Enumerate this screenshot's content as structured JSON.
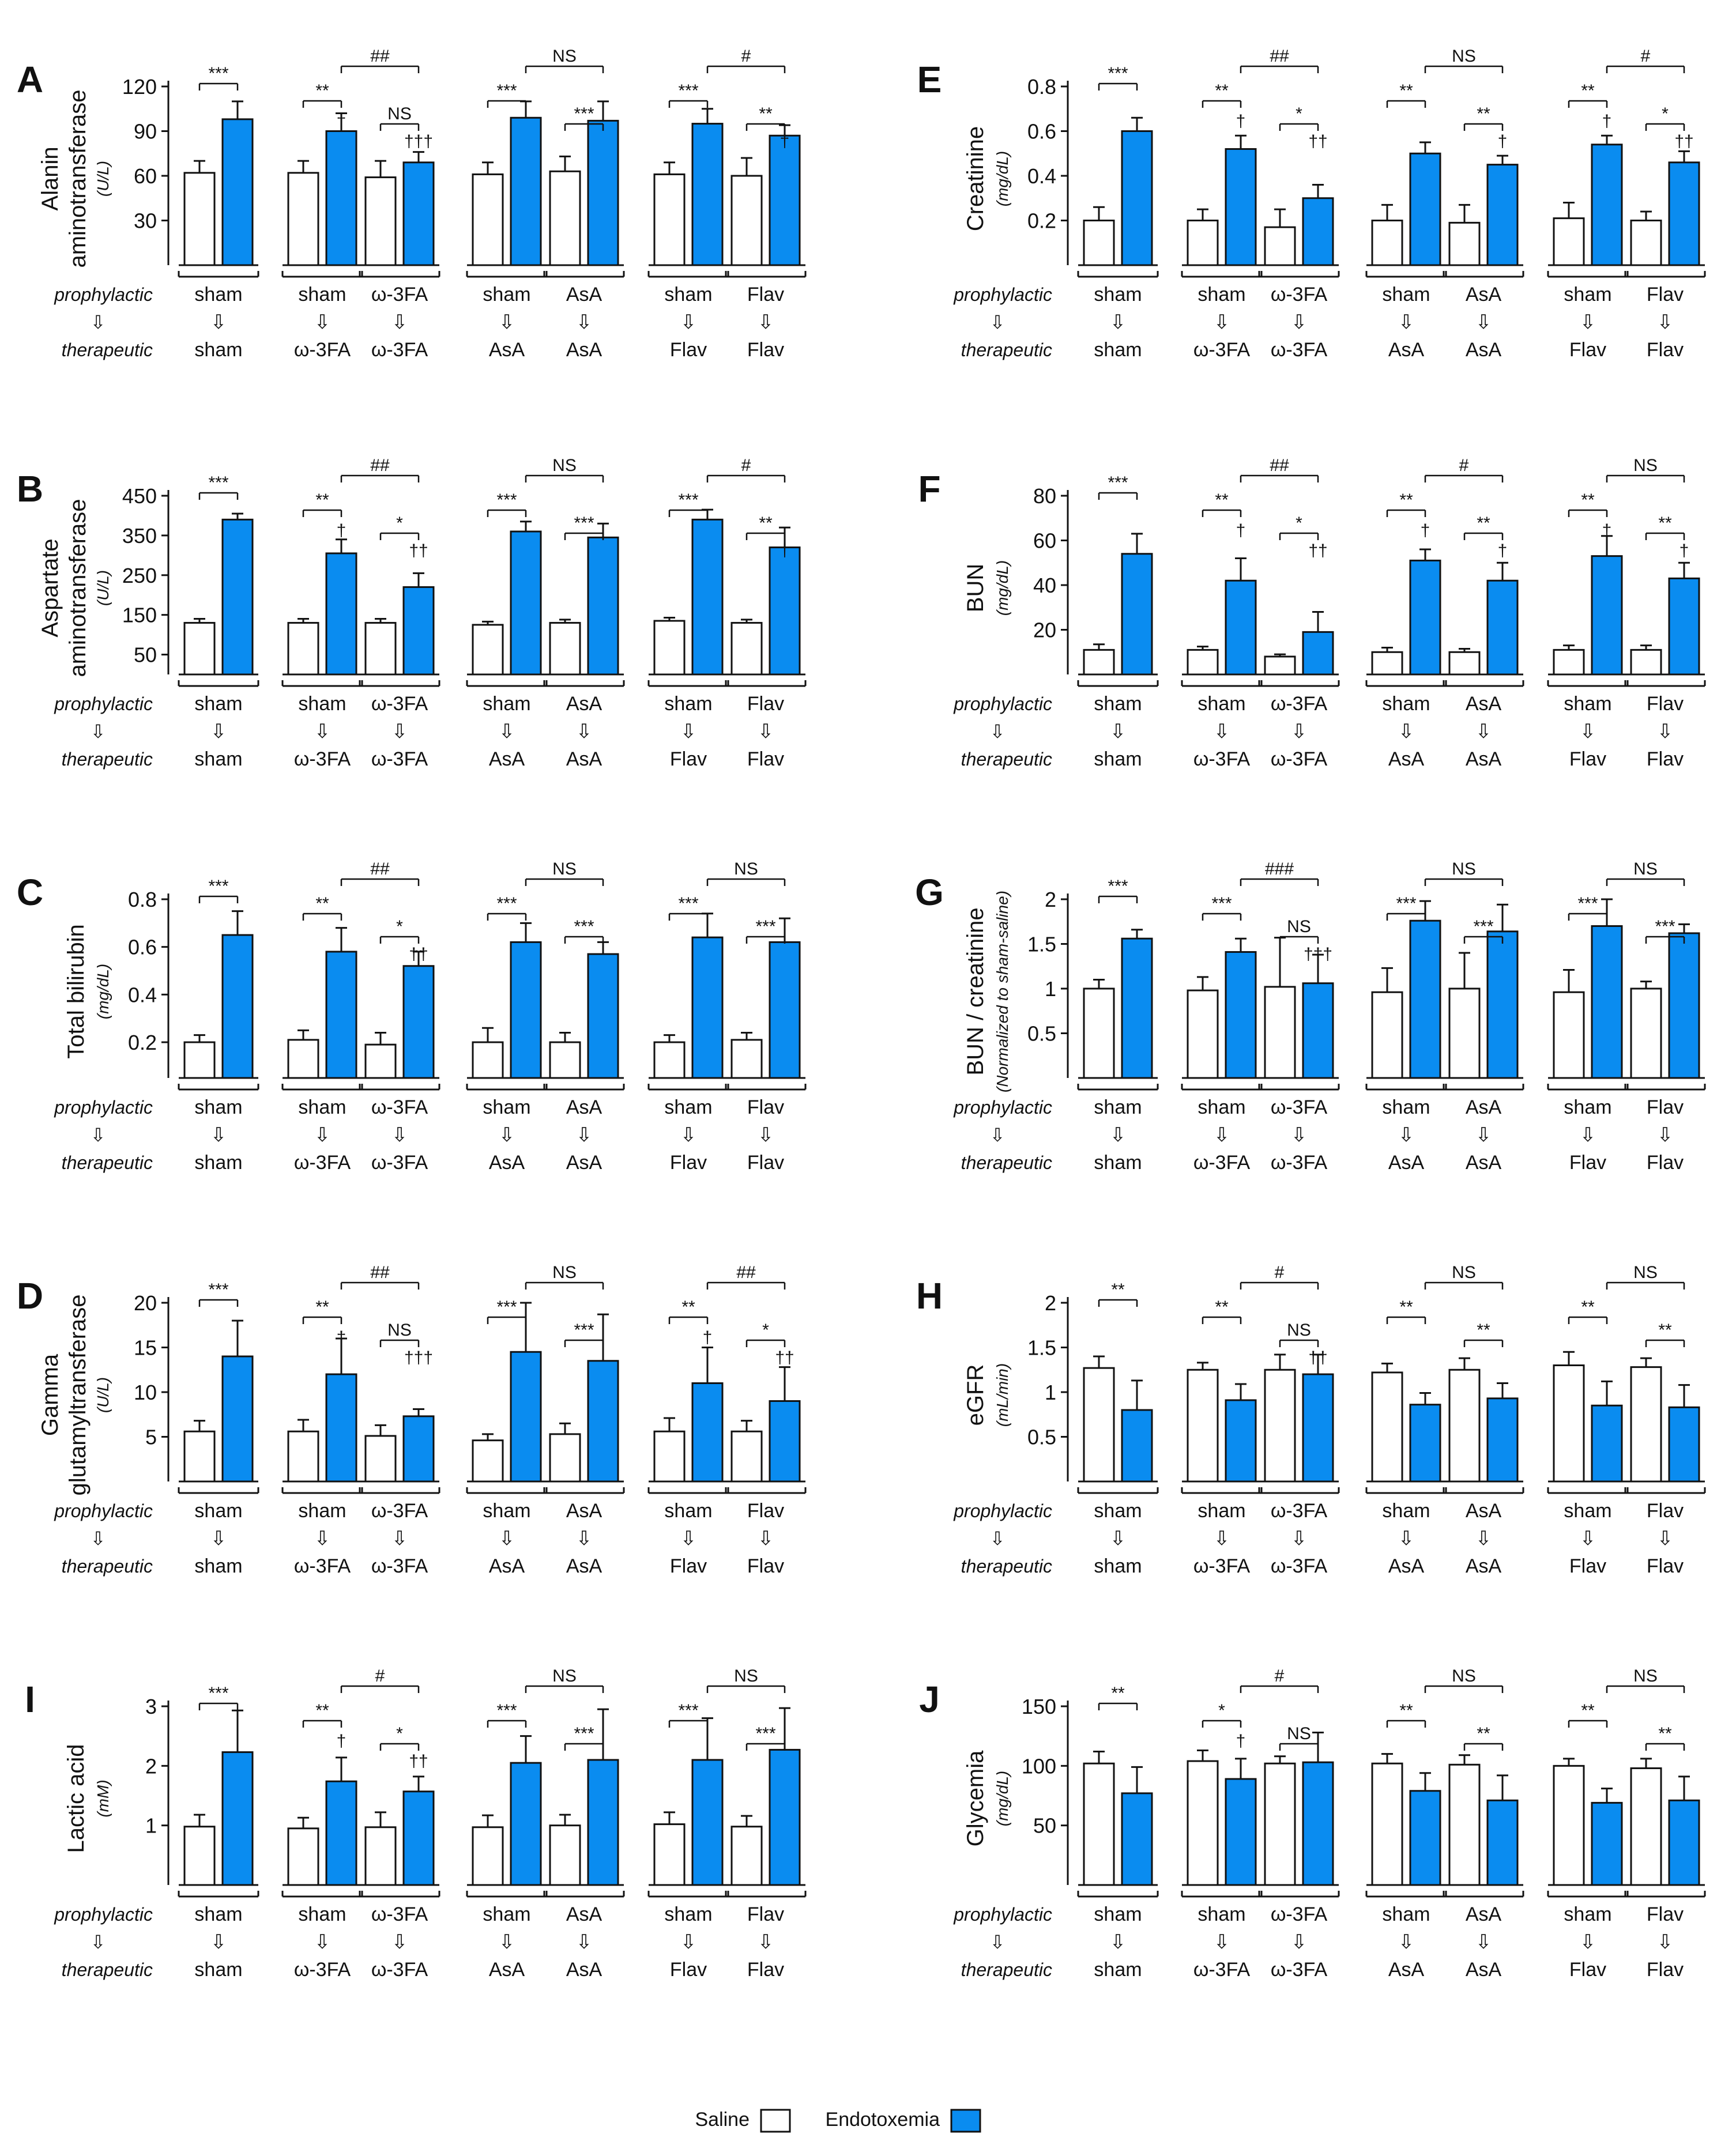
{
  "colors": {
    "saline": "#ffffff",
    "endotoxemia": "#0a8cf0",
    "ink": "#111111"
  },
  "labels": {
    "prophylactic": "prophylactic",
    "therapeutic": "therapeutic"
  },
  "groups": [
    {
      "pro": "sham",
      "ther": "sham"
    },
    {
      "pro": "sham",
      "ther": "ω-3FA"
    },
    {
      "pro": "ω-3FA",
      "ther": "ω-3FA"
    },
    {
      "pro": "sham",
      "ther": "AsA"
    },
    {
      "pro": "AsA",
      "ther": "AsA"
    },
    {
      "pro": "sham",
      "ther": "Flav"
    },
    {
      "pro": "Flav",
      "ther": "Flav"
    }
  ],
  "legend": {
    "saline": "Saline",
    "endotoxemia": "Endotoxemia"
  },
  "chart_data": [
    {
      "panel": "A",
      "type": "bar",
      "title": "",
      "ylabel": "Alanin aminotransferase",
      "unit": "(U/L)",
      "ylim": [
        0,
        120
      ],
      "ticks": [
        30,
        60,
        90,
        120
      ],
      "series": [
        {
          "name": "Saline",
          "values": [
            62,
            62,
            59,
            61,
            63,
            61,
            60
          ],
          "errors": [
            8,
            8,
            11,
            8,
            10,
            8,
            12
          ]
        },
        {
          "name": "Endotoxemia",
          "values": [
            98,
            90,
            69,
            99,
            97,
            95,
            87
          ],
          "errors": [
            12,
            12,
            7,
            11,
            13,
            10,
            7
          ]
        }
      ],
      "annotations": [
        "***",
        "**",
        "†",
        "NS",
        "†††",
        "##",
        "***",
        "***",
        "NS",
        "***",
        "**",
        "†",
        "#"
      ]
    },
    {
      "panel": "B",
      "type": "bar",
      "title": "",
      "ylabel": "Aspartate aminotransferase",
      "unit": "(U/L)",
      "ylim": [
        0,
        450
      ],
      "ticks": [
        50,
        150,
        250,
        350,
        450
      ],
      "series": [
        {
          "name": "Saline",
          "values": [
            130,
            130,
            130,
            125,
            130,
            135,
            130
          ],
          "errors": [
            10,
            10,
            10,
            8,
            8,
            8,
            8
          ]
        },
        {
          "name": "Endotoxemia",
          "values": [
            390,
            305,
            220,
            360,
            345,
            390,
            320
          ],
          "errors": [
            15,
            35,
            35,
            25,
            35,
            25,
            50
          ]
        }
      ],
      "annotations": [
        "***",
        "**",
        "†",
        "*",
        "††",
        "##",
        "***",
        "***",
        "NS",
        "***",
        "**",
        "†",
        "#"
      ]
    },
    {
      "panel": "C",
      "type": "bar",
      "title": "",
      "ylabel": "Total bilirubin",
      "unit": "(mg/dL)",
      "ylim": [
        0.05,
        0.8
      ],
      "ticks": [
        0.2,
        0.4,
        0.6,
        0.8
      ],
      "series": [
        {
          "name": "Saline",
          "values": [
            0.2,
            0.21,
            0.19,
            0.2,
            0.2,
            0.2,
            0.21
          ],
          "errors": [
            0.03,
            0.04,
            0.05,
            0.06,
            0.04,
            0.03,
            0.03
          ]
        },
        {
          "name": "Endotoxemia",
          "values": [
            0.65,
            0.58,
            0.52,
            0.62,
            0.57,
            0.64,
            0.62
          ],
          "errors": [
            0.1,
            0.1,
            0.06,
            0.08,
            0.05,
            0.1,
            0.1
          ]
        }
      ],
      "annotations": [
        "***",
        "**",
        "*",
        "††",
        "##",
        "***",
        "***",
        "NS",
        "***",
        "***",
        "NS"
      ]
    },
    {
      "panel": "D",
      "type": "bar",
      "title": "",
      "ylabel": "Gamma glutamyltransferase",
      "unit": "(U/L)",
      "ylim": [
        0,
        20
      ],
      "ticks": [
        5,
        10,
        15,
        20
      ],
      "series": [
        {
          "name": "Saline",
          "values": [
            5.6,
            5.6,
            5.1,
            4.6,
            5.3,
            5.6,
            5.6
          ],
          "errors": [
            1.2,
            1.3,
            1.2,
            0.7,
            1.2,
            1.5,
            1.2
          ]
        },
        {
          "name": "Endotoxemia",
          "values": [
            14,
            12,
            7.3,
            14.5,
            13.5,
            11,
            9
          ],
          "errors": [
            4,
            4,
            0.8,
            5.5,
            5.2,
            4,
            3.8
          ]
        }
      ],
      "annotations": [
        "***",
        "**",
        "†",
        "NS",
        "†††",
        "##",
        "***",
        "***",
        "NS",
        "**",
        "†",
        "*",
        "††",
        "##"
      ]
    },
    {
      "panel": "E",
      "type": "bar",
      "title": "",
      "ylabel": "Creatinine",
      "unit": "(mg/dL)",
      "ylim": [
        0,
        0.8
      ],
      "ticks": [
        0.2,
        0.4,
        0.6,
        0.8
      ],
      "series": [
        {
          "name": "Saline",
          "values": [
            0.2,
            0.2,
            0.17,
            0.2,
            0.19,
            0.21,
            0.2
          ],
          "errors": [
            0.06,
            0.05,
            0.08,
            0.07,
            0.08,
            0.07,
            0.04
          ]
        },
        {
          "name": "Endotoxemia",
          "values": [
            0.6,
            0.52,
            0.3,
            0.5,
            0.45,
            0.54,
            0.46
          ],
          "errors": [
            0.06,
            0.06,
            0.06,
            0.05,
            0.04,
            0.04,
            0.05
          ]
        }
      ],
      "annotations": [
        "***",
        "**",
        "†",
        "*",
        "††",
        "##",
        "**",
        "**",
        "†",
        "NS",
        "**",
        "†",
        "*",
        "††",
        "#"
      ]
    },
    {
      "panel": "F",
      "type": "bar",
      "title": "",
      "ylabel": "BUN",
      "unit": "(mg/dL)",
      "ylim": [
        0,
        80
      ],
      "ticks": [
        20,
        40,
        60,
        80
      ],
      "series": [
        {
          "name": "Saline",
          "values": [
            11,
            11,
            8,
            10,
            10,
            11,
            11
          ],
          "errors": [
            2.5,
            1.5,
            1,
            2,
            1.5,
            2,
            2
          ]
        },
        {
          "name": "Endotoxemia",
          "values": [
            54,
            42,
            19,
            51,
            42,
            53,
            43
          ],
          "errors": [
            9,
            10,
            9,
            5,
            8,
            9,
            7
          ]
        }
      ],
      "annotations": [
        "***",
        "**",
        "†",
        "*",
        "††",
        "##",
        "**",
        "†",
        "**",
        "†",
        "#",
        "**",
        "†",
        "**",
        "†",
        "NS"
      ]
    },
    {
      "panel": "G",
      "type": "bar",
      "title": "",
      "ylabel": "BUN / creatinine",
      "unit": "(Normalized to sham-saline)",
      "ylim": [
        0,
        2.0
      ],
      "ticks": [
        0.5,
        1.0,
        1.5,
        2.0
      ],
      "series": [
        {
          "name": "Saline",
          "values": [
            1.0,
            0.98,
            1.02,
            0.96,
            1.0,
            0.96,
            1.0
          ],
          "errors": [
            0.1,
            0.15,
            0.55,
            0.27,
            0.4,
            0.25,
            0.08
          ]
        },
        {
          "name": "Endotoxemia",
          "values": [
            1.56,
            1.41,
            1.06,
            1.76,
            1.64,
            1.7,
            1.62
          ],
          "errors": [
            0.1,
            0.15,
            0.32,
            0.22,
            0.3,
            0.3,
            0.1
          ]
        }
      ],
      "annotations": [
        "***",
        "***",
        "NS",
        "†††",
        "###",
        "***",
        "***",
        "NS",
        "***",
        "***",
        "NS"
      ]
    },
    {
      "panel": "H",
      "type": "bar",
      "title": "",
      "ylabel": "eGFR",
      "unit": "(mL/min)",
      "ylim": [
        0,
        2.0
      ],
      "ticks": [
        0.5,
        1.0,
        1.5,
        2.0
      ],
      "series": [
        {
          "name": "Saline",
          "values": [
            1.27,
            1.25,
            1.25,
            1.22,
            1.25,
            1.3,
            1.28
          ],
          "errors": [
            0.13,
            0.08,
            0.17,
            0.1,
            0.13,
            0.15,
            0.1
          ]
        },
        {
          "name": "Endotoxemia",
          "values": [
            0.8,
            0.91,
            1.2,
            0.86,
            0.93,
            0.85,
            0.83
          ],
          "errors": [
            0.33,
            0.18,
            0.22,
            0.13,
            0.17,
            0.27,
            0.25
          ]
        }
      ],
      "annotations": [
        "**",
        "**",
        "NS",
        "††",
        "#",
        "**",
        "**",
        "NS",
        "**",
        "**",
        "NS"
      ]
    },
    {
      "panel": "I",
      "type": "bar",
      "title": "",
      "ylabel": "Lactic acid",
      "unit": "(mM)",
      "ylim": [
        0,
        3
      ],
      "ticks": [
        1,
        2,
        3
      ],
      "series": [
        {
          "name": "Saline",
          "values": [
            0.98,
            0.95,
            0.97,
            0.97,
            1.0,
            1.02,
            0.98
          ],
          "errors": [
            0.2,
            0.18,
            0.25,
            0.2,
            0.18,
            0.2,
            0.18
          ]
        },
        {
          "name": "Endotoxemia",
          "values": [
            2.23,
            1.74,
            1.57,
            2.05,
            2.1,
            2.1,
            2.27
          ],
          "errors": [
            0.7,
            0.4,
            0.25,
            0.45,
            0.85,
            0.7,
            0.7
          ]
        }
      ],
      "annotations": [
        "***",
        "**",
        "†",
        "*",
        "††",
        "#",
        "***",
        "***",
        "NS",
        "***",
        "***",
        "NS"
      ]
    },
    {
      "panel": "J",
      "type": "bar",
      "title": "",
      "ylabel": "Glycemia",
      "unit": "(mg/dL)",
      "ylim": [
        0,
        150
      ],
      "ticks": [
        50,
        100,
        150
      ],
      "series": [
        {
          "name": "Saline",
          "values": [
            102,
            104,
            102,
            102,
            101,
            100,
            98
          ],
          "errors": [
            10,
            9,
            6,
            8,
            8,
            6,
            8
          ]
        },
        {
          "name": "Endotoxemia",
          "values": [
            77,
            89,
            103,
            79,
            71,
            69,
            71
          ],
          "errors": [
            22,
            17,
            25,
            15,
            21,
            12,
            20
          ]
        }
      ],
      "annotations": [
        "**",
        "*",
        "†",
        "NS",
        "#",
        "**",
        "**",
        "NS",
        "**",
        "**",
        "NS"
      ]
    }
  ]
}
